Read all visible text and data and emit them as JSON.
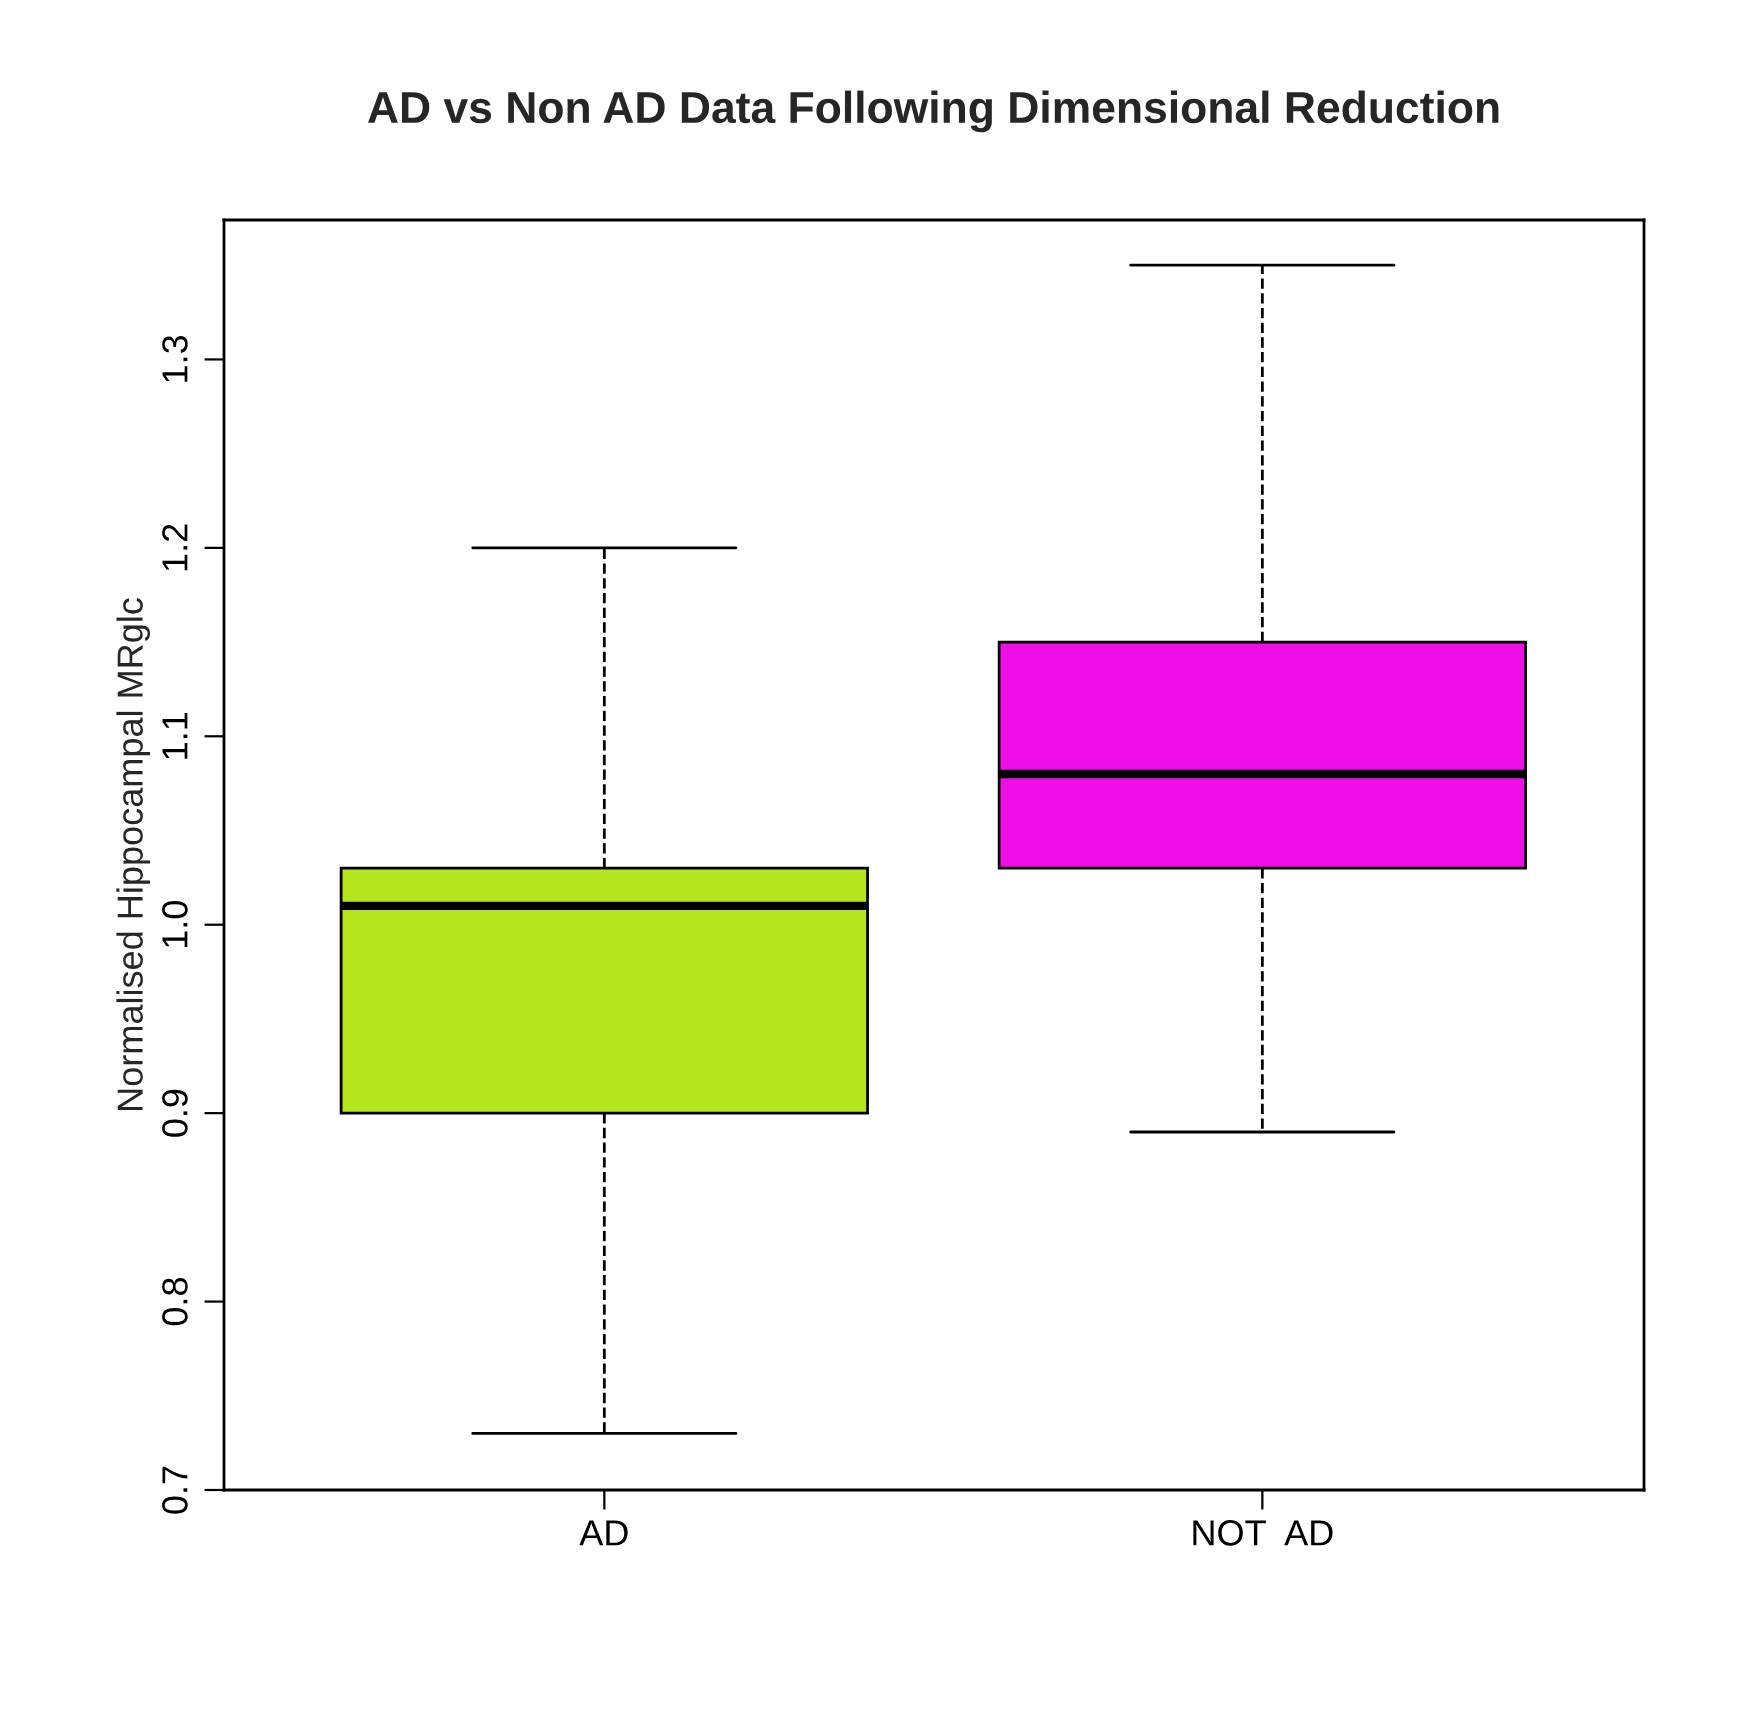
{
  "chart_data": {
    "type": "box",
    "title": "AD vs Non AD Data Following Dimensional Reduction",
    "ylabel": "Normalised Hippocampal MRglc",
    "categories": [
      "AD",
      "NOT  AD"
    ],
    "boxes": [
      {
        "low": 0.73,
        "q1": 0.9,
        "median": 1.01,
        "q3": 1.03,
        "high": 1.2
      },
      {
        "low": 0.89,
        "q1": 1.03,
        "median": 1.08,
        "q3": 1.15,
        "high": 1.35
      }
    ],
    "colors": [
      "#b5e61d",
      "#f00ee8"
    ],
    "ylim": [
      0.7,
      1.374
    ],
    "yticks": [
      0.7,
      0.8,
      0.9,
      {
        "value": 1.0,
        "label": "1.0"
      },
      1.1,
      1.2,
      1.3
    ],
    "grid": false,
    "legend": false
  }
}
